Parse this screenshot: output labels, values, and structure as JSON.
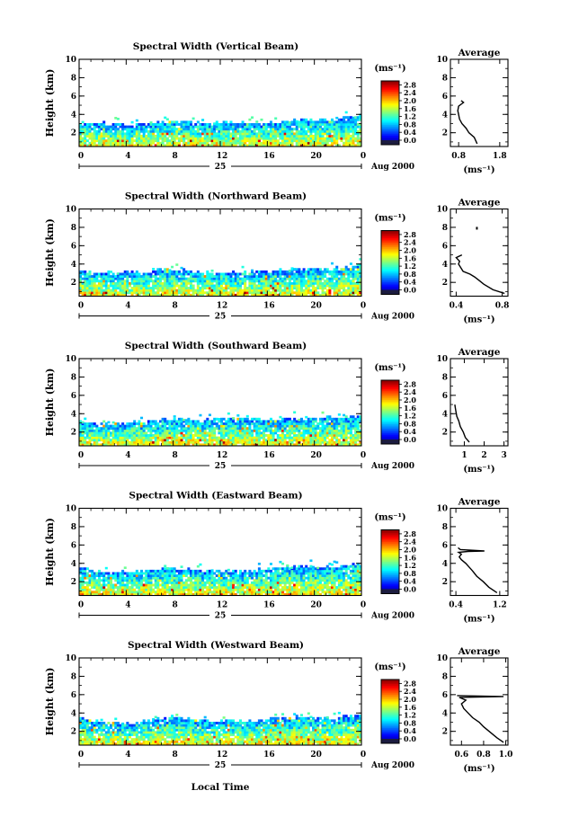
{
  "figure": {
    "xlabel": "Local Time",
    "date_label": "Aug 2000",
    "day_label": "25"
  },
  "chart_data": [
    {
      "type": "heatmap",
      "title": "Spectral Width (Vertical Beam)",
      "ylabel": "Height (km)",
      "x_ticks": [
        "0",
        "4",
        "8",
        "12",
        "16",
        "20",
        "0"
      ],
      "y_ticks": [
        "2",
        "4",
        "6",
        "8",
        "10"
      ],
      "xlim": [
        0,
        24
      ],
      "ylim": [
        0.5,
        10
      ],
      "top_height_km": [
        2.9,
        3.0,
        2.8,
        2.9,
        3.0,
        3.2,
        3.1,
        2.9,
        3.0,
        3.0,
        2.9,
        3.1,
        3.4,
        3.2,
        3.4,
        3.8
      ],
      "colorbar": {
        "unit_label": "(ms⁻¹)",
        "ticks": [
          "0.0",
          "0.4",
          "0.8",
          "1.2",
          "1.6",
          "2.0",
          "2.4",
          "2.8"
        ],
        "range": [
          0,
          3.0
        ]
      },
      "average": {
        "title": "Average",
        "unit_label": "(ms⁻¹)",
        "x_ticks": [
          "0.8",
          "1.8"
        ],
        "x_tick_values": [
          0.8,
          1.8
        ],
        "y_ticks": [
          "2",
          "4",
          "6",
          "8",
          "10"
        ],
        "xlim": [
          0.6,
          2.0
        ],
        "ylim": [
          0.5,
          10
        ],
        "profile": [
          [
            1.25,
            0.8
          ],
          [
            1.18,
            1.5
          ],
          [
            1.05,
            2.0
          ],
          [
            0.98,
            2.5
          ],
          [
            0.88,
            3.0
          ],
          [
            0.82,
            3.5
          ],
          [
            0.8,
            4.0
          ],
          [
            0.78,
            4.4
          ],
          [
            0.8,
            4.9
          ],
          [
            0.92,
            5.3
          ],
          [
            0.86,
            5.5
          ]
        ]
      }
    },
    {
      "type": "heatmap",
      "title": "Spectral Width (Northward Beam)",
      "ylabel": "Height (km)",
      "x_ticks": [
        "0",
        "4",
        "8",
        "12",
        "16",
        "20",
        "0"
      ],
      "y_ticks": [
        "2",
        "4",
        "6",
        "8",
        "10"
      ],
      "xlim": [
        0,
        24
      ],
      "ylim": [
        0.5,
        10
      ],
      "top_height_km": [
        3.1,
        3.0,
        2.9,
        3.0,
        3.2,
        3.3,
        3.1,
        3.0,
        3.1,
        3.0,
        3.1,
        3.2,
        3.3,
        3.4,
        3.5,
        3.9
      ],
      "colorbar": {
        "unit_label": "(ms⁻¹)",
        "ticks": [
          "0.0",
          "0.4",
          "0.8",
          "1.2",
          "1.6",
          "2.0",
          "2.4",
          "2.8"
        ],
        "range": [
          0,
          3.0
        ]
      },
      "average": {
        "title": "Average",
        "unit_label": "(ms⁻¹)",
        "x_ticks": [
          "0.4",
          "0.8"
        ],
        "x_tick_values": [
          0.4,
          0.8
        ],
        "y_ticks": [
          "2",
          "4",
          "6",
          "8",
          "10"
        ],
        "xlim": [
          0.35,
          0.85
        ],
        "ylim": [
          0.5,
          10
        ],
        "profile": [
          [
            0.82,
            0.8
          ],
          [
            0.72,
            1.2
          ],
          [
            0.64,
            1.8
          ],
          [
            0.6,
            2.2
          ],
          [
            0.56,
            2.6
          ],
          [
            0.52,
            2.9
          ],
          [
            0.46,
            3.2
          ],
          [
            0.44,
            3.6
          ],
          [
            0.42,
            4.0
          ],
          [
            0.43,
            4.3
          ],
          [
            0.4,
            4.7
          ],
          [
            0.45,
            5.0
          ]
        ],
        "extra_points": [
          [
            0.58,
            7.9
          ]
        ]
      }
    },
    {
      "type": "heatmap",
      "title": "Spectral Width (Southward Beam)",
      "ylabel": "Height (km)",
      "x_ticks": [
        "0",
        "4",
        "8",
        "12",
        "16",
        "20",
        "0"
      ],
      "y_ticks": [
        "2",
        "4",
        "6",
        "8",
        "10"
      ],
      "xlim": [
        0,
        24
      ],
      "ylim": [
        0.5,
        10
      ],
      "top_height_km": [
        3.0,
        2.9,
        2.8,
        3.0,
        3.1,
        3.3,
        3.3,
        3.2,
        3.3,
        3.3,
        3.2,
        3.3,
        3.4,
        3.5,
        3.4,
        3.7
      ],
      "colorbar": {
        "unit_label": "(ms⁻¹)",
        "ticks": [
          "0.0",
          "0.4",
          "0.8",
          "1.2",
          "1.6",
          "2.0",
          "2.4",
          "2.8"
        ],
        "range": [
          0,
          3.0
        ]
      },
      "average": {
        "title": "Average",
        "unit_label": "(ms⁻¹)",
        "x_ticks": [
          "1",
          "2",
          "3"
        ],
        "x_tick_values": [
          1,
          2,
          3
        ],
        "y_ticks": [
          "2",
          "4",
          "6",
          "8",
          "10"
        ],
        "xlim": [
          0.3,
          3.2
        ],
        "ylim": [
          0.5,
          10
        ],
        "profile": [
          [
            1.25,
            0.9
          ],
          [
            1.05,
            1.4
          ],
          [
            0.95,
            2.0
          ],
          [
            0.8,
            2.6
          ],
          [
            0.72,
            3.2
          ],
          [
            0.62,
            3.7
          ],
          [
            0.58,
            4.2
          ],
          [
            0.55,
            4.6
          ],
          [
            0.52,
            5.0
          ]
        ]
      }
    },
    {
      "type": "heatmap",
      "title": "Spectral Width (Eastward Beam)",
      "ylabel": "Height (km)",
      "x_ticks": [
        "0",
        "4",
        "8",
        "12",
        "16",
        "20",
        "0"
      ],
      "y_ticks": [
        "2",
        "4",
        "6",
        "8",
        "10"
      ],
      "xlim": [
        0,
        24
      ],
      "ylim": [
        0.5,
        10
      ],
      "top_height_km": [
        3.4,
        3.0,
        2.9,
        3.0,
        3.2,
        3.4,
        3.2,
        3.0,
        3.1,
        3.1,
        3.3,
        3.5,
        3.6,
        3.4,
        3.5,
        3.9
      ],
      "colorbar": {
        "unit_label": "(ms⁻¹)",
        "ticks": [
          "0.0",
          "0.4",
          "0.8",
          "1.2",
          "1.6",
          "2.0",
          "2.4",
          "2.8"
        ],
        "range": [
          0,
          3.0
        ]
      },
      "average": {
        "title": "Average",
        "unit_label": "(ms⁻¹)",
        "x_ticks": [
          "0.4",
          "1.2"
        ],
        "x_tick_values": [
          0.4,
          1.2
        ],
        "y_ticks": [
          "2",
          "4",
          "6",
          "8",
          "10"
        ],
        "xlim": [
          0.3,
          1.35
        ],
        "ylim": [
          0.5,
          10
        ],
        "profile": [
          [
            1.15,
            0.8
          ],
          [
            1.0,
            1.4
          ],
          [
            0.9,
            2.0
          ],
          [
            0.78,
            2.6
          ],
          [
            0.7,
            3.2
          ],
          [
            0.64,
            3.6
          ],
          [
            0.58,
            4.0
          ],
          [
            0.5,
            4.4
          ],
          [
            0.46,
            4.7
          ],
          [
            0.5,
            5.0
          ],
          [
            0.45,
            5.2
          ],
          [
            0.62,
            5.3
          ],
          [
            0.92,
            5.35
          ],
          [
            0.48,
            5.5
          ],
          [
            0.44,
            5.7
          ]
        ]
      }
    },
    {
      "type": "heatmap",
      "title": "Spectral Width (Westward Beam)",
      "ylabel": "Height (km)",
      "x_ticks": [
        "0",
        "4",
        "8",
        "12",
        "16",
        "20",
        "0"
      ],
      "y_ticks": [
        "2",
        "4",
        "6",
        "8",
        "10"
      ],
      "xlim": [
        0,
        24
      ],
      "ylim": [
        0.5,
        10
      ],
      "top_height_km": [
        3.2,
        2.9,
        2.8,
        2.9,
        3.1,
        3.5,
        3.2,
        3.0,
        3.0,
        3.0,
        3.2,
        3.4,
        3.4,
        3.3,
        3.4,
        3.7
      ],
      "colorbar": {
        "unit_label": "(ms⁻¹)",
        "ticks": [
          "0.0",
          "0.4",
          "0.8",
          "1.2",
          "1.6",
          "2.0",
          "2.4",
          "2.8"
        ],
        "range": [
          0,
          3.0
        ]
      },
      "average": {
        "title": "Average",
        "unit_label": "(ms⁻¹)",
        "x_ticks": [
          "0.6",
          "0.8",
          "1.0"
        ],
        "x_tick_values": [
          0.6,
          0.8,
          1.0
        ],
        "y_ticks": [
          "2",
          "4",
          "6",
          "8",
          "10"
        ],
        "xlim": [
          0.5,
          1.02
        ],
        "ylim": [
          0.5,
          10
        ],
        "profile": [
          [
            0.98,
            0.8
          ],
          [
            0.92,
            1.3
          ],
          [
            0.86,
            1.9
          ],
          [
            0.8,
            2.5
          ],
          [
            0.76,
            3.0
          ],
          [
            0.7,
            3.5
          ],
          [
            0.66,
            4.0
          ],
          [
            0.62,
            4.5
          ],
          [
            0.6,
            5.0
          ],
          [
            0.64,
            5.4
          ],
          [
            0.58,
            5.7
          ],
          [
            0.98,
            5.8
          ],
          [
            0.56,
            5.9
          ]
        ]
      }
    }
  ]
}
